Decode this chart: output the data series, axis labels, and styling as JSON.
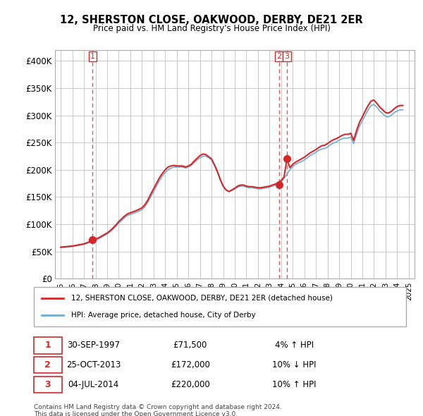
{
  "title": "12, SHERSTON CLOSE, OAKWOOD, DERBY, DE21 2ER",
  "subtitle": "Price paid vs. HM Land Registry's House Price Index (HPI)",
  "legend_line1": "12, SHERSTON CLOSE, OAKWOOD, DERBY, DE21 2ER (detached house)",
  "legend_line2": "HPI: Average price, detached house, City of Derby",
  "footnote1": "Contains HM Land Registry data © Crown copyright and database right 2024.",
  "footnote2": "This data is licensed under the Open Government Licence v3.0.",
  "sale_points": [
    {
      "num": 1,
      "date": "30-SEP-1997",
      "price": 71500,
      "x": 1997.75,
      "hpi_rel": "4% ↑ HPI"
    },
    {
      "num": 2,
      "date": "25-OCT-2013",
      "price": 172000,
      "x": 2013.81,
      "hpi_rel": "10% ↓ HPI"
    },
    {
      "num": 3,
      "date": "04-JUL-2014",
      "price": 220000,
      "x": 2014.5,
      "hpi_rel": "10% ↑ HPI"
    }
  ],
  "hpi_line_color": "#6baed6",
  "sale_line_color": "#d62728",
  "dot_color": "#d62728",
  "vline_color": "#d62728",
  "grid_color": "#cccccc",
  "background_color": "#ffffff",
  "ylim": [
    0,
    420000
  ],
  "xlim": [
    1994.5,
    2025.5
  ],
  "yticks": [
    0,
    50000,
    100000,
    150000,
    200000,
    250000,
    300000,
    350000,
    400000
  ],
  "ytick_labels": [
    "£0",
    "£50K",
    "£100K",
    "£150K",
    "£200K",
    "£250K",
    "£300K",
    "£350K",
    "£400K"
  ],
  "xticks": [
    1995,
    1996,
    1997,
    1998,
    1999,
    2000,
    2001,
    2002,
    2003,
    2004,
    2005,
    2006,
    2007,
    2008,
    2009,
    2010,
    2011,
    2012,
    2013,
    2014,
    2015,
    2016,
    2017,
    2018,
    2019,
    2020,
    2021,
    2022,
    2023,
    2024,
    2025
  ],
  "hpi_data": {
    "x": [
      1995.0,
      1995.25,
      1995.5,
      1995.75,
      1996.0,
      1996.25,
      1996.5,
      1996.75,
      1997.0,
      1997.25,
      1997.5,
      1997.75,
      1998.0,
      1998.25,
      1998.5,
      1998.75,
      1999.0,
      1999.25,
      1999.5,
      1999.75,
      2000.0,
      2000.25,
      2000.5,
      2000.75,
      2001.0,
      2001.25,
      2001.5,
      2001.75,
      2002.0,
      2002.25,
      2002.5,
      2002.75,
      2003.0,
      2003.25,
      2003.5,
      2003.75,
      2004.0,
      2004.25,
      2004.5,
      2004.75,
      2005.0,
      2005.25,
      2005.5,
      2005.75,
      2006.0,
      2006.25,
      2006.5,
      2006.75,
      2007.0,
      2007.25,
      2007.5,
      2007.75,
      2008.0,
      2008.25,
      2008.5,
      2008.75,
      2009.0,
      2009.25,
      2009.5,
      2009.75,
      2010.0,
      2010.25,
      2010.5,
      2010.75,
      2011.0,
      2011.25,
      2011.5,
      2011.75,
      2012.0,
      2012.25,
      2012.5,
      2012.75,
      2013.0,
      2013.25,
      2013.5,
      2013.75,
      2014.0,
      2014.25,
      2014.5,
      2014.75,
      2015.0,
      2015.25,
      2015.5,
      2015.75,
      2016.0,
      2016.25,
      2016.5,
      2016.75,
      2017.0,
      2017.25,
      2017.5,
      2017.75,
      2018.0,
      2018.25,
      2018.5,
      2018.75,
      2019.0,
      2019.25,
      2019.5,
      2019.75,
      2020.0,
      2020.25,
      2020.5,
      2020.75,
      2021.0,
      2021.25,
      2021.5,
      2021.75,
      2022.0,
      2022.25,
      2022.5,
      2022.75,
      2023.0,
      2023.25,
      2023.5,
      2023.75,
      2024.0,
      2024.25,
      2024.5
    ],
    "y": [
      57000,
      57500,
      58000,
      58500,
      59000,
      60000,
      61000,
      62000,
      63000,
      65000,
      67000,
      69000,
      71000,
      73000,
      76000,
      79000,
      82000,
      86000,
      91000,
      96000,
      102000,
      107000,
      112000,
      116000,
      118000,
      120000,
      122000,
      124000,
      127000,
      132000,
      140000,
      150000,
      160000,
      170000,
      180000,
      188000,
      195000,
      200000,
      203000,
      205000,
      205000,
      205000,
      205000,
      203000,
      205000,
      208000,
      213000,
      218000,
      222000,
      225000,
      225000,
      222000,
      218000,
      208000,
      196000,
      182000,
      170000,
      163000,
      160000,
      162000,
      165000,
      168000,
      170000,
      170000,
      168000,
      167000,
      167000,
      166000,
      165000,
      165000,
      166000,
      167000,
      168000,
      170000,
      172000,
      174000,
      178000,
      184000,
      192000,
      200000,
      206000,
      210000,
      213000,
      215000,
      218000,
      222000,
      226000,
      229000,
      232000,
      236000,
      238000,
      239000,
      242000,
      246000,
      249000,
      251000,
      254000,
      257000,
      258000,
      258000,
      260000,
      248000,
      265000,
      280000,
      290000,
      300000,
      310000,
      318000,
      320000,
      315000,
      308000,
      303000,
      298000,
      297000,
      300000,
      305000,
      308000,
      310000,
      310000
    ]
  },
  "sale_line_data": {
    "x": [
      1995.0,
      1995.25,
      1995.5,
      1995.75,
      1996.0,
      1996.25,
      1996.5,
      1996.75,
      1997.0,
      1997.25,
      1997.5,
      1997.75,
      1998.0,
      1998.25,
      1998.5,
      1998.75,
      1999.0,
      1999.25,
      1999.5,
      1999.75,
      2000.0,
      2000.25,
      2000.5,
      2000.75,
      2001.0,
      2001.25,
      2001.5,
      2001.75,
      2002.0,
      2002.25,
      2002.5,
      2002.75,
      2003.0,
      2003.25,
      2003.5,
      2003.75,
      2004.0,
      2004.25,
      2004.5,
      2004.75,
      2005.0,
      2005.25,
      2005.5,
      2005.75,
      2006.0,
      2006.25,
      2006.5,
      2006.75,
      2007.0,
      2007.25,
      2007.5,
      2007.75,
      2008.0,
      2008.25,
      2008.5,
      2008.75,
      2009.0,
      2009.25,
      2009.5,
      2009.75,
      2010.0,
      2010.25,
      2010.5,
      2010.75,
      2011.0,
      2011.25,
      2011.5,
      2011.75,
      2012.0,
      2012.25,
      2012.5,
      2012.75,
      2013.0,
      2013.25,
      2013.5,
      2013.75,
      2014.0,
      2014.25,
      2014.5,
      2014.75,
      2015.0,
      2015.25,
      2015.5,
      2015.75,
      2016.0,
      2016.25,
      2016.5,
      2016.75,
      2017.0,
      2017.25,
      2017.5,
      2017.75,
      2018.0,
      2018.25,
      2018.5,
      2018.75,
      2019.0,
      2019.25,
      2019.5,
      2019.75,
      2020.0,
      2020.25,
      2020.5,
      2020.75,
      2021.0,
      2021.25,
      2021.5,
      2021.75,
      2022.0,
      2022.25,
      2022.5,
      2022.75,
      2023.0,
      2023.25,
      2023.5,
      2023.75,
      2024.0,
      2024.25,
      2024.5
    ],
    "y": [
      58000,
      58500,
      59000,
      59500,
      60000,
      61000,
      62000,
      63000,
      64000,
      66000,
      68000,
      71500,
      73000,
      75000,
      78000,
      81000,
      84000,
      88000,
      93000,
      98500,
      105000,
      110000,
      115000,
      119000,
      121000,
      123000,
      125000,
      127500,
      130000,
      136000,
      144000,
      155000,
      165000,
      175000,
      185000,
      193000,
      200000,
      205000,
      207000,
      208000,
      207000,
      207000,
      207000,
      205000,
      207000,
      210000,
      216000,
      221000,
      226000,
      229000,
      228000,
      224000,
      220000,
      209000,
      197000,
      182000,
      170000,
      163000,
      160000,
      163000,
      166000,
      170000,
      172000,
      172000,
      170000,
      169000,
      169000,
      168000,
      167000,
      167000,
      168000,
      169000,
      170000,
      172000,
      174000,
      176000,
      180000,
      187000,
      220000,
      204000,
      210000,
      214000,
      217000,
      220000,
      223000,
      227000,
      231000,
      234000,
      237000,
      241000,
      244000,
      245000,
      248000,
      252000,
      255000,
      257000,
      260000,
      263000,
      265000,
      265000,
      267000,
      254000,
      272000,
      287000,
      297000,
      308000,
      318000,
      326000,
      328000,
      322000,
      315000,
      310000,
      305000,
      304000,
      307000,
      312000,
      316000,
      318000,
      318000
    ]
  }
}
